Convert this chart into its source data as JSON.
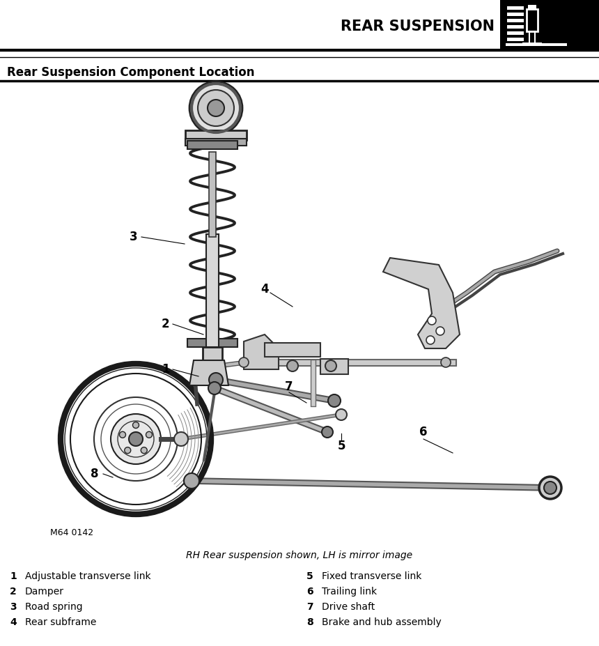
{
  "title": "REAR SUSPENSION",
  "subtitle": "Rear Suspension Component Location",
  "caption": "RH Rear suspension shown, LH is mirror image",
  "ref_code": "M64 0142",
  "bg_color": "#ffffff",
  "title_fontsize": 15,
  "subtitle_fontsize": 12,
  "caption_fontsize": 10,
  "legend_fontsize": 10,
  "items_left": [
    [
      "1",
      "Adjustable transverse link"
    ],
    [
      "2",
      "Damper"
    ],
    [
      "3",
      "Road spring"
    ],
    [
      "4",
      "Rear subframe"
    ]
  ],
  "items_right": [
    [
      "5",
      "Fixed transverse link"
    ],
    [
      "6",
      "Trailing link"
    ],
    [
      "7",
      "Drive shaft"
    ],
    [
      "8",
      "Brake and hub assembly"
    ]
  ]
}
